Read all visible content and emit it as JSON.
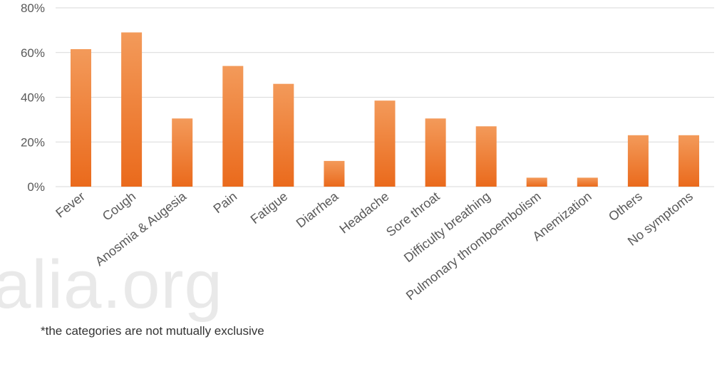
{
  "watermark": "alia.org",
  "footnote": "*the categories are not mutually exclusive",
  "colors": {
    "bar": "#ef7a2e",
    "bar_light": "#f39a5a",
    "grid": "#d9d9d9",
    "text": "#595959"
  },
  "chart_data": {
    "type": "bar",
    "title": "",
    "xlabel": "",
    "ylabel": "",
    "ylim": [
      0,
      80
    ],
    "yticks": [
      "0%",
      "20%",
      "40%",
      "60%",
      "80%"
    ],
    "grid": true,
    "categories": [
      "Fever",
      "Cough",
      "Anosmia & Augesia",
      "Pain",
      "Fatigue",
      "Diarrhea",
      "Headache",
      "Sore throat",
      "Difficulty breathing",
      "Pulmonary thromboembolism",
      "Anemization",
      "Others",
      "No symptoms"
    ],
    "values": [
      61.5,
      69,
      30.5,
      54,
      46,
      11.5,
      38.5,
      30.5,
      27,
      4,
      4,
      23,
      23
    ]
  }
}
